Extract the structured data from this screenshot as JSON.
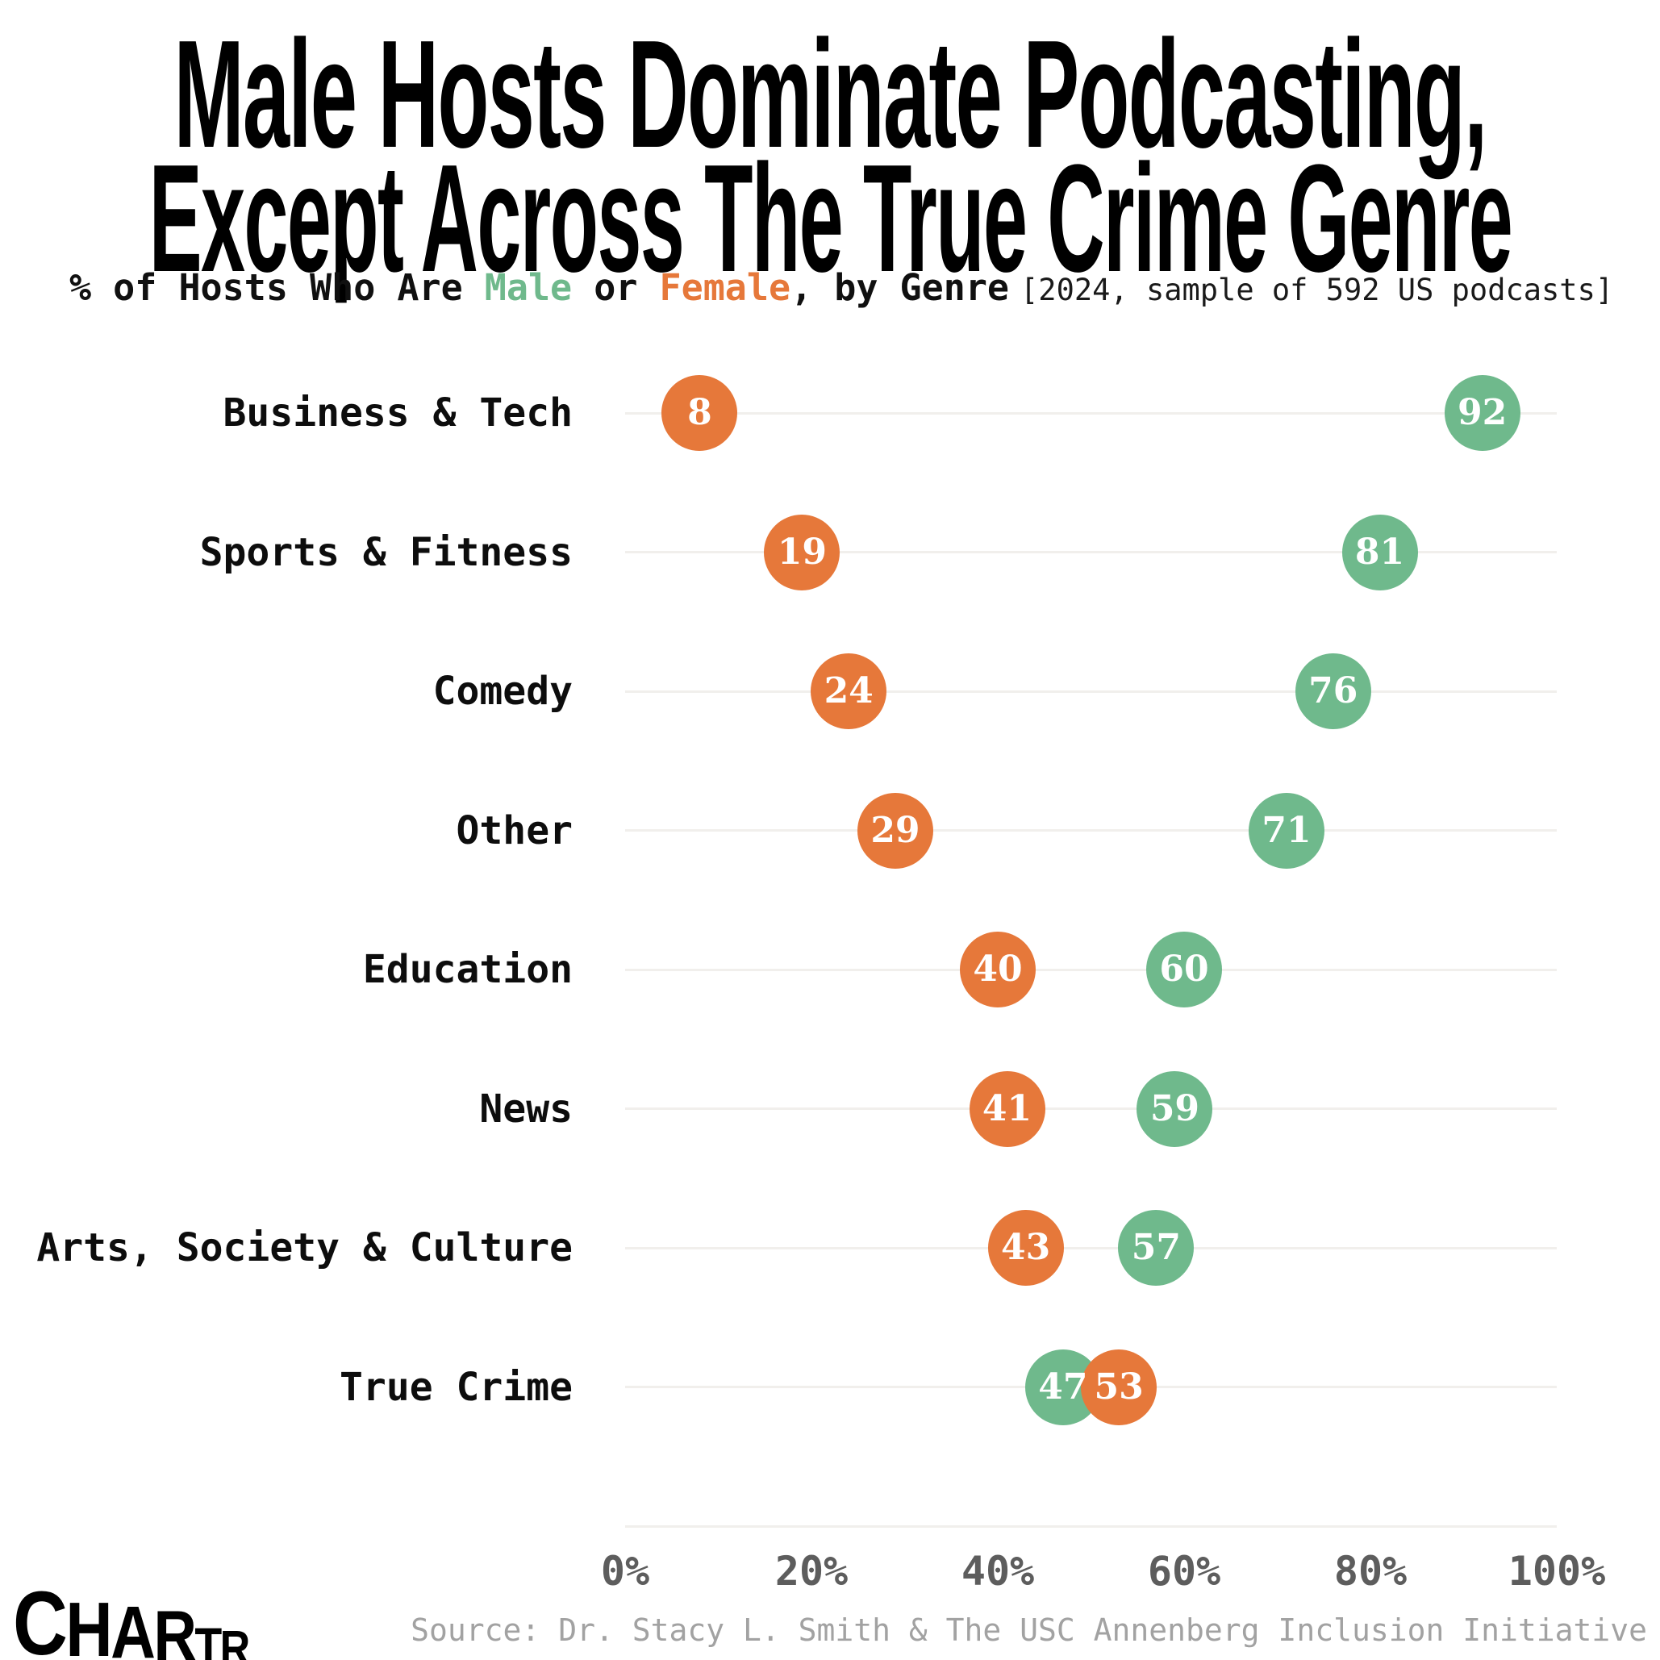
{
  "title": {
    "line1": "Male Hosts Dominate Podcasting,",
    "line2": "Except Across The True Crime Genre"
  },
  "subtitle": {
    "prefix": "% of Hosts Who Are ",
    "male_word": "Male",
    "middle": " or ",
    "female_word": "Female",
    "suffix": ", by Genre",
    "note": "[2024, sample of 592 US podcasts]"
  },
  "chart_data": {
    "type": "scatter",
    "description": "Dot plot: % of podcast hosts who are male or female, by genre",
    "categories": [
      "Business & Tech",
      "Sports & Fitness",
      "Comedy",
      "Other",
      "Education",
      "News",
      "Arts, Society & Culture",
      "True Crime"
    ],
    "series": [
      {
        "name": "Male",
        "color": "#6fb98c",
        "values": [
          92,
          81,
          76,
          71,
          60,
          59,
          57,
          47
        ]
      },
      {
        "name": "Female",
        "color": "#e6783a",
        "values": [
          8,
          19,
          24,
          29,
          40,
          41,
          43,
          53
        ]
      }
    ],
    "xlim": [
      0,
      100
    ],
    "x_ticks": [
      "0%",
      "20%",
      "40%",
      "60%",
      "80%",
      "100%"
    ],
    "x_tick_values": [
      0,
      20,
      40,
      60,
      80,
      100
    ],
    "grid": "horizontal-row-lines",
    "legend_position": "inline-in-subtitle",
    "units": "%",
    "sample_note": "2024, sample of 592 US podcasts"
  },
  "colors": {
    "male_green": "#6fb98c",
    "female_orange": "#e6783a",
    "gridline": "#f1efec",
    "axis_text": "#5d5d5d",
    "source_text": "#a2a2a2",
    "title_text": "#000000"
  },
  "footer": {
    "source": "Source: Dr. Stacy L. Smith & The USC Annenberg Inclusion Initiative",
    "logo_letters": [
      "C",
      "H",
      "A",
      "R",
      "T",
      "R"
    ]
  }
}
